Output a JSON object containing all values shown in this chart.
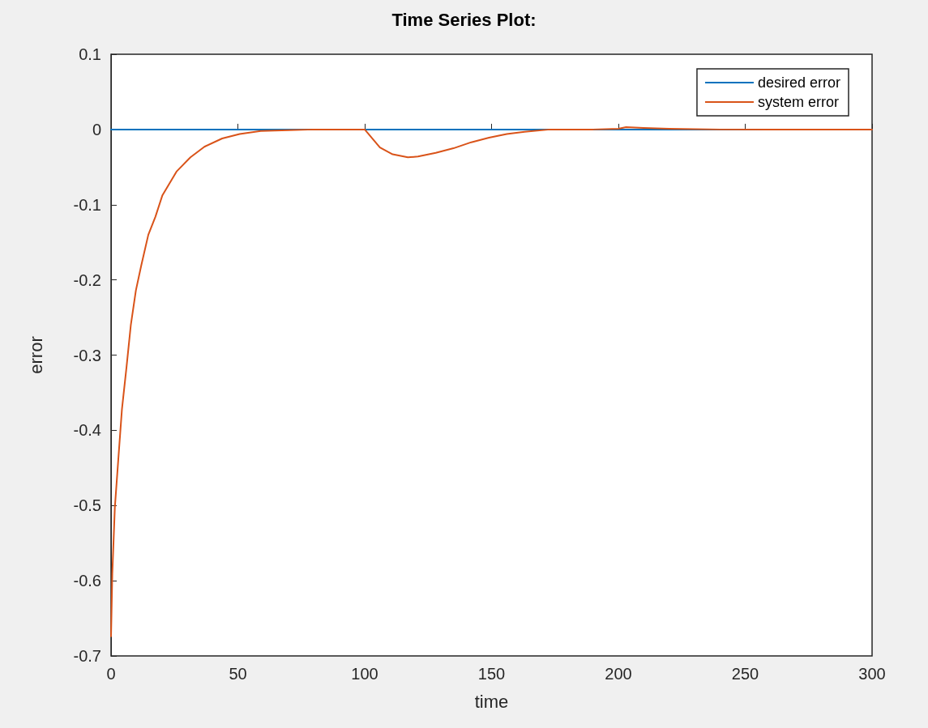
{
  "chart_data": {
    "type": "line",
    "title": "Time Series Plot:",
    "xlabel": "time",
    "ylabel": "error",
    "xlim": [
      0,
      300
    ],
    "xticks": [
      0,
      50,
      100,
      150,
      200,
      250,
      300
    ],
    "ylim": [
      -0.7,
      0.1
    ],
    "yticks": [
      -0.7,
      -0.6,
      -0.5,
      -0.4,
      -0.3,
      -0.2,
      -0.1,
      0,
      0.1
    ],
    "grid": false,
    "legend": "top right",
    "marker": "none",
    "line_style": "solid",
    "series": [
      {
        "name": "desired error",
        "color": "#0072bd",
        "x": [
          0,
          300
        ],
        "values": [
          0,
          0
        ]
      },
      {
        "name": "system error",
        "color": "#d95319",
        "x": [
          0,
          0.5,
          1.5,
          2.9,
          4.3,
          6.1,
          7.8,
          9.8,
          11.9,
          14.7,
          17.5,
          20.2,
          25.8,
          31.3,
          36.8,
          43.8,
          50.7,
          59,
          70,
          80,
          90,
          100,
          106,
          111,
          117,
          121,
          128,
          135,
          142,
          149,
          156,
          163,
          173,
          190,
          200,
          203,
          210,
          220,
          240,
          260,
          280,
          300
        ],
        "values": [
          -0.674,
          -0.591,
          -0.503,
          -0.437,
          -0.372,
          -0.316,
          -0.26,
          -0.214,
          -0.181,
          -0.14,
          -0.116,
          -0.088,
          -0.056,
          -0.037,
          -0.023,
          -0.012,
          -0.006,
          -0.002,
          -0.001,
          0,
          0,
          0,
          -0.024,
          -0.033,
          -0.037,
          -0.036,
          -0.031,
          -0.025,
          -0.017,
          -0.011,
          -0.006,
          -0.003,
          0,
          0,
          0.001,
          0.003,
          0.002,
          0.001,
          0,
          0,
          0,
          0
        ]
      }
    ]
  }
}
